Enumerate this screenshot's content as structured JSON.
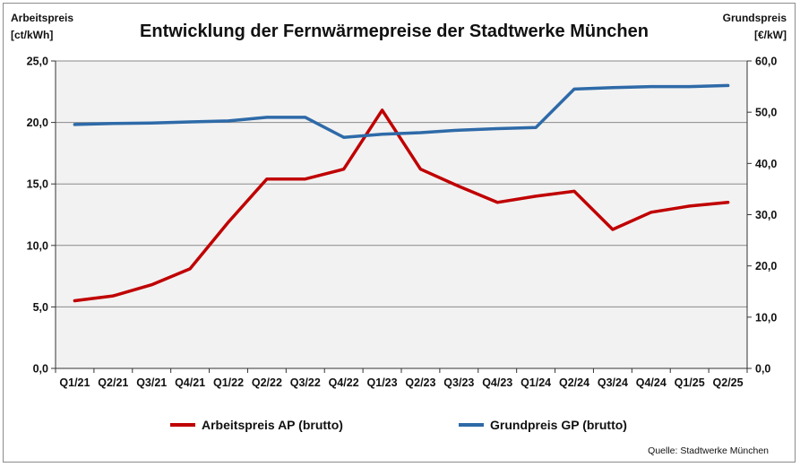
{
  "chart_data": {
    "type": "line",
    "title": "Entwicklung der Fernwärmepreise der Stadtwerke München",
    "ylabel_left": [
      "Arbeitspreis",
      "[ct/kWh]"
    ],
    "ylabel_right": [
      "Grundspreis",
      "[€/kW]"
    ],
    "categories": [
      "Q1/21",
      "Q2/21",
      "Q3/21",
      "Q4/21",
      "Q1/22",
      "Q2/22",
      "Q3/22",
      "Q4/22",
      "Q1/23",
      "Q2/23",
      "Q3/23",
      "Q4/23",
      "Q1/24",
      "Q2/24",
      "Q3/24",
      "Q4/24",
      "Q1/25",
      "Q2/25"
    ],
    "ylim_left": [
      0,
      25
    ],
    "ylim_right": [
      0,
      60
    ],
    "yticks_left": [
      "0,0",
      "5,0",
      "10,0",
      "15,0",
      "20,0",
      "25,0"
    ],
    "yticks_right": [
      "0,0",
      "10,0",
      "20,0",
      "30,0",
      "40,0",
      "50,0",
      "60,0"
    ],
    "grid": true,
    "legend_placement": "bottom",
    "series": [
      {
        "name": "Arbeitspreis AP (brutto)",
        "axis": "left",
        "color": "#c00000",
        "values": [
          5.5,
          5.9,
          6.8,
          8.1,
          11.9,
          15.4,
          15.4,
          16.2,
          21.0,
          16.2,
          14.8,
          13.5,
          14.0,
          14.4,
          11.3,
          12.7,
          13.2,
          13.5
        ]
      },
      {
        "name": "Grundpreis GP (brutto)",
        "axis": "right",
        "color": "#2e6aa8",
        "values": [
          47.6,
          47.8,
          47.9,
          48.1,
          48.3,
          49.0,
          49.0,
          45.1,
          45.7,
          46.0,
          46.5,
          46.8,
          47.0,
          54.5,
          54.8,
          55.0,
          55.0,
          55.2
        ]
      }
    ],
    "source": "Quelle: Stadtwerke München"
  }
}
